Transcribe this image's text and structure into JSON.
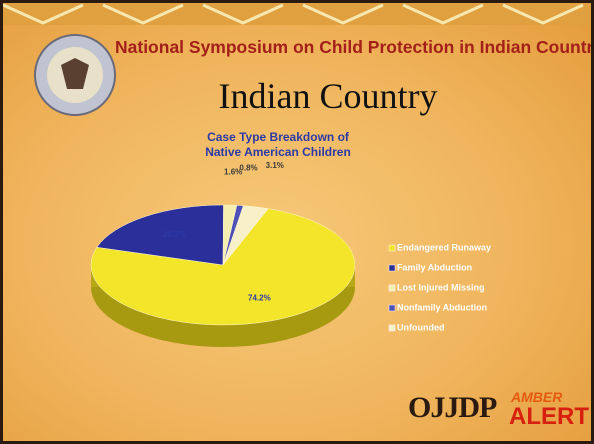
{
  "slide": {
    "banner": "National Symposium on Child Protection in Indian Country",
    "title": "Indian Country",
    "logo_left": "OJJDP",
    "logo_right_top": "AMBER",
    "logo_right_bottom": "ALERT"
  },
  "chart_data": {
    "type": "pie",
    "title": "Case Type Breakdown of Native American Children",
    "categories": [
      "Endangered Runaway",
      "Family Abduction",
      "Lost Injured Missing",
      "Nonfamily Abduction",
      "Unfounded"
    ],
    "values": [
      74.2,
      20.3,
      1.6,
      0.8,
      3.1
    ],
    "value_labels": [
      "74.2%",
      "20.3%",
      "1.6%",
      "0.8%",
      "3.1%"
    ],
    "colors": [
      "#f2e52a",
      "#2a2f9a",
      "#f4efb0",
      "#4c50b8",
      "#f7f0c8"
    ],
    "legend": "right"
  }
}
